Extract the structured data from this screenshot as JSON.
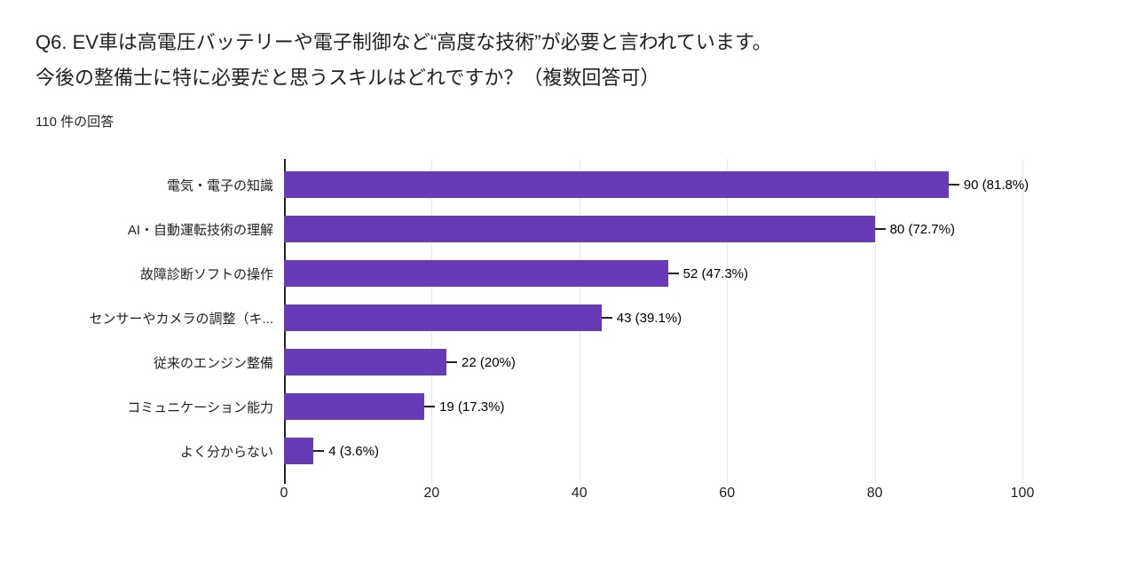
{
  "header": {
    "title_line1": "Q6. EV車は高電圧バッテリーや電子制御など“高度な技術”が必要と言われています。",
    "title_line2": "今後の整備士に特に必要だと思うスキルはどれですか？（複数回答可）",
    "response_count": "110 件の回答"
  },
  "chart_data": {
    "type": "bar",
    "orientation": "horizontal",
    "title": "Q6. EV車は高電圧バッテリーや電子制御など“高度な技術”が必要と言われています。今後の整備士に特に必要だと思うスキルはどれですか？（複数回答可）",
    "subtitle": "110 件の回答",
    "categories": [
      "電気・電子の知識",
      "AI・自動運転技術の理解",
      "故障診断ソフトの操作",
      "センサーやカメラの調整（キ...",
      "従来のエンジン整備",
      "コミュニケーション能力",
      "よく分からない"
    ],
    "values": [
      90,
      80,
      52,
      43,
      22,
      19,
      4
    ],
    "value_labels": [
      "90 (81.8%)",
      "80 (72.7%)",
      "52 (47.3%)",
      "43 (39.1%)",
      "22 (20%)",
      "19 (17.3%)",
      "4 (3.6%)"
    ],
    "xlim": [
      0,
      100
    ],
    "xticks": [
      0,
      20,
      40,
      60,
      80,
      100
    ],
    "bar_color": "#673ab7",
    "grid": true,
    "legend": "none"
  }
}
